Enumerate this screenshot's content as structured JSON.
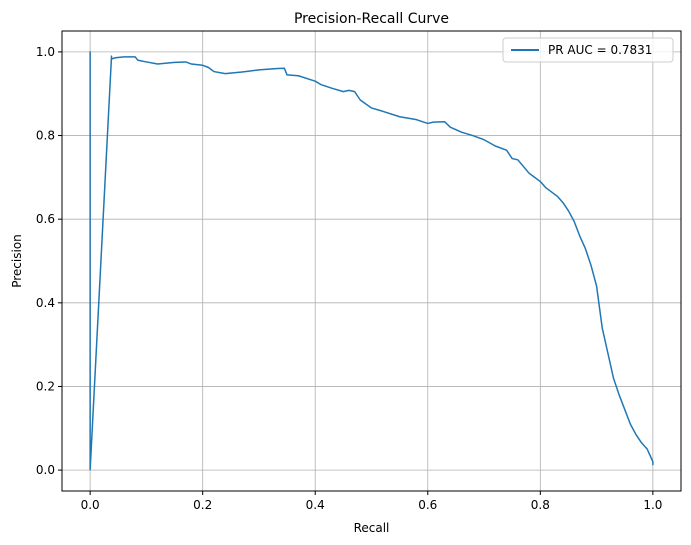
{
  "chart_data": {
    "type": "line",
    "title": "Precision-Recall Curve",
    "xlabel": "Recall",
    "ylabel": "Precision",
    "xlim": [
      -0.05,
      1.05
    ],
    "ylim": [
      -0.05,
      1.05
    ],
    "xticks": [
      "0.0",
      "0.2",
      "0.4",
      "0.6",
      "0.8",
      "1.0"
    ],
    "yticks": [
      "0.0",
      "0.2",
      "0.4",
      "0.6",
      "0.8",
      "1.0"
    ],
    "grid": true,
    "legend_position": "upper right",
    "series": [
      {
        "name": "PR AUC = 0.7831",
        "color": "#1f77b4",
        "x": [
          0.0,
          0.0,
          0.0,
          0.038,
          0.038,
          0.045,
          0.06,
          0.08,
          0.085,
          0.1,
          0.12,
          0.15,
          0.17,
          0.18,
          0.2,
          0.21,
          0.22,
          0.24,
          0.27,
          0.3,
          0.33,
          0.345,
          0.35,
          0.37,
          0.4,
          0.41,
          0.43,
          0.45,
          0.46,
          0.47,
          0.48,
          0.5,
          0.52,
          0.55,
          0.58,
          0.6,
          0.61,
          0.63,
          0.64,
          0.66,
          0.68,
          0.7,
          0.72,
          0.74,
          0.75,
          0.76,
          0.78,
          0.79,
          0.8,
          0.81,
          0.83,
          0.84,
          0.85,
          0.86,
          0.87,
          0.88,
          0.89,
          0.9,
          0.905,
          0.91,
          0.92,
          0.93,
          0.94,
          0.95,
          0.96,
          0.97,
          0.98,
          0.99,
          0.995,
          1.0,
          1.0
        ],
        "y": [
          0.001,
          1.0,
          0.001,
          0.99,
          0.983,
          0.986,
          0.988,
          0.988,
          0.98,
          0.976,
          0.971,
          0.975,
          0.976,
          0.971,
          0.968,
          0.963,
          0.953,
          0.948,
          0.952,
          0.957,
          0.96,
          0.961,
          0.945,
          0.943,
          0.93,
          0.922,
          0.913,
          0.905,
          0.908,
          0.905,
          0.885,
          0.866,
          0.858,
          0.845,
          0.838,
          0.829,
          0.832,
          0.833,
          0.82,
          0.808,
          0.8,
          0.79,
          0.775,
          0.765,
          0.745,
          0.742,
          0.71,
          0.7,
          0.69,
          0.675,
          0.655,
          0.64,
          0.62,
          0.595,
          0.56,
          0.53,
          0.49,
          0.44,
          0.39,
          0.34,
          0.28,
          0.22,
          0.18,
          0.145,
          0.11,
          0.085,
          0.065,
          0.05,
          0.035,
          0.02,
          0.012
        ]
      }
    ]
  }
}
